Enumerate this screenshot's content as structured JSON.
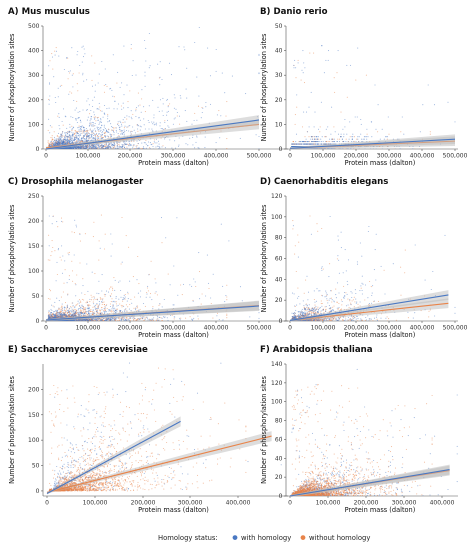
{
  "colors": {
    "with": "#4a78c2",
    "without": "#e8844a",
    "band": "#bcbcbc"
  },
  "legend": {
    "title": "Homology status:",
    "items": [
      {
        "label": "with homology",
        "color": "#4a78c2"
      },
      {
        "label": "without homology",
        "color": "#e8844a"
      }
    ]
  },
  "chart_data": [
    {
      "type": "scatter",
      "title": "A) Mus musculus",
      "xlabel": "Protein mass (dalton)",
      "ylabel": "Number of phosphorylation sites",
      "xlim": [
        0,
        500000
      ],
      "ylim": [
        0,
        500
      ],
      "xticks": [
        "0",
        "100,000",
        "200,000",
        "300,000",
        "400,000",
        "500,000"
      ],
      "yticks": [
        0,
        100,
        200,
        300,
        400,
        500
      ],
      "point_count": {
        "with homology": 2200,
        "without homology": 700
      },
      "series": [
        {
          "name": "with homology",
          "fit": [
            [
              0,
              0
            ],
            [
              500000,
              118
            ]
          ]
        },
        {
          "name": "without homology",
          "fit": [
            [
              0,
              5
            ],
            [
              500000,
              100
            ]
          ]
        }
      ]
    },
    {
      "type": "scatter",
      "title": "B) Danio rerio",
      "xlabel": "Protein mass (dalton)",
      "ylabel": "Number of phosphorylation sites",
      "xlim": [
        0,
        500000
      ],
      "ylim": [
        0,
        50
      ],
      "xticks": [
        "0",
        "100,000",
        "200,000",
        "300,000",
        "400,000",
        "500,000"
      ],
      "yticks": [
        0,
        10,
        20,
        30,
        40,
        50
      ],
      "point_count": {
        "with homology": 900,
        "without homology": 500
      },
      "series": [
        {
          "name": "with homology",
          "fit": [
            [
              0,
              0.3
            ],
            [
              500000,
              4
            ]
          ]
        },
        {
          "name": "without homology",
          "fit": [
            [
              0,
              0.3
            ],
            [
              500000,
              3.2
            ]
          ]
        }
      ]
    },
    {
      "type": "scatter",
      "title": "C) Drosophila melanogaster",
      "xlabel": "Protein mass (dalton)",
      "ylabel": "Number of phosphorylation sites",
      "xlim": [
        0,
        500000
      ],
      "ylim": [
        0,
        250
      ],
      "xticks": [
        "0",
        "100,000",
        "200,000",
        "300,000",
        "400,000",
        "500,000"
      ],
      "yticks": [
        0,
        50,
        100,
        150,
        200,
        250
      ],
      "point_count": {
        "with homology": 1400,
        "without homology": 1400
      },
      "series": [
        {
          "name": "with homology",
          "fit": [
            [
              0,
              2
            ],
            [
              500000,
              30
            ]
          ]
        },
        {
          "name": "without homology",
          "fit": [
            [
              0,
              2
            ],
            [
              500000,
              31
            ]
          ]
        }
      ]
    },
    {
      "type": "scatter",
      "title": "D) Caenorhabditis elegans",
      "xlabel": "Protein mass (dalton)",
      "ylabel": "Number of phosphorylation sites",
      "xlim": [
        0,
        500000
      ],
      "ylim": [
        0,
        120
      ],
      "xticks": [
        "0",
        "100,000",
        "200,000",
        "300,000",
        "400,000",
        "500,000"
      ],
      "yticks": [
        0,
        20,
        40,
        60,
        80,
        100,
        120
      ],
      "point_count": {
        "with homology": 700,
        "without homology": 700
      },
      "series": [
        {
          "name": "with homology",
          "fit": [
            [
              0,
              0.5
            ],
            [
              480000,
              25
            ]
          ]
        },
        {
          "name": "without homology",
          "fit": [
            [
              0,
              0.5
            ],
            [
              480000,
              17
            ]
          ]
        }
      ]
    },
    {
      "type": "scatter",
      "title": "E) Saccharomyces cerevisiae",
      "xlabel": "Protein mass (dalton)",
      "ylabel": "Number of phosphorylation sites",
      "xlim": [
        0,
        490000
      ],
      "ylim": [
        -10,
        250
      ],
      "xticks": [
        "0",
        "100,000",
        "200,000",
        "300,000",
        "400,000"
      ],
      "yticks": [
        0,
        50,
        100,
        150,
        200
      ],
      "point_count": {
        "with homology": 500,
        "without homology": 2200
      },
      "series": [
        {
          "name": "with homology",
          "fit": [
            [
              0,
              -5
            ],
            [
              280000,
              137
            ]
          ]
        },
        {
          "name": "without homology",
          "fit": [
            [
              0,
              -3
            ],
            [
              470000,
              108
            ]
          ]
        }
      ]
    },
    {
      "type": "scatter",
      "title": "F) Arabidopsis thaliana",
      "xlabel": "Protein mass (dalton)",
      "ylabel": "Number of phosphorylation sites",
      "xlim": [
        0,
        440000
      ],
      "ylim": [
        0,
        140
      ],
      "xticks": [
        "0",
        "100,000",
        "200,000",
        "300,000",
        "400,000"
      ],
      "yticks": [
        0,
        20,
        40,
        60,
        80,
        100,
        120,
        140
      ],
      "point_count": {
        "with homology": 900,
        "without homology": 2600
      },
      "series": [
        {
          "name": "with homology",
          "fit": [
            [
              0,
              0
            ],
            [
              420000,
              28
            ]
          ]
        },
        {
          "name": "without homology",
          "fit": [
            [
              0,
              0
            ],
            [
              420000,
              27
            ]
          ]
        }
      ]
    }
  ]
}
